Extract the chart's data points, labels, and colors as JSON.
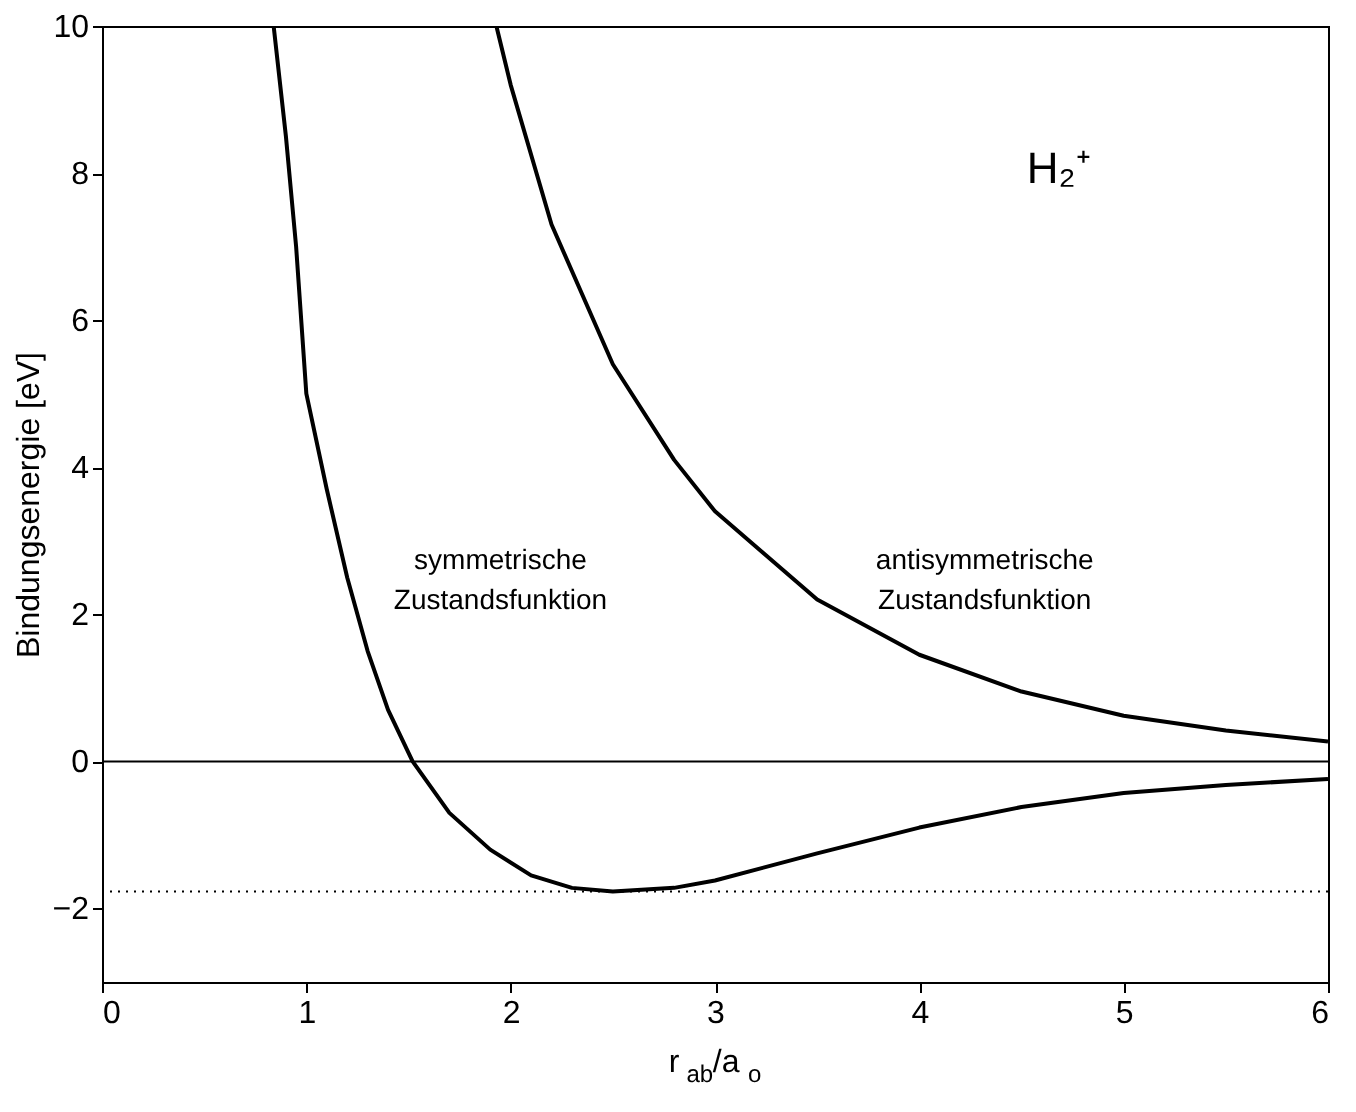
{
  "chart_data": {
    "type": "line",
    "xlabel": "r$_{ab}$/a$_{o}$",
    "ylabel": "Bindungsenergie  [eV]",
    "xlim": [
      0,
      6
    ],
    "ylim": [
      -3,
      10
    ],
    "xticks": [
      0,
      1,
      2,
      3,
      4,
      5,
      6
    ],
    "yticks": [
      -2,
      0,
      2,
      4,
      6,
      8,
      10
    ],
    "grid": false,
    "line_style": "solid",
    "marker": "none",
    "series": [
      {
        "color": "#000000",
        "x": [
          0.84,
          0.9,
          0.95,
          1.0,
          1.1,
          1.2,
          1.3,
          1.4,
          1.52,
          1.7,
          1.9,
          2.1,
          2.3,
          2.5,
          2.8,
          3.0,
          3.5,
          4.0,
          4.5,
          5.0,
          5.5,
          6.0
        ],
        "values": [
          10,
          8.5,
          7.0,
          5.0,
          3.7,
          2.5,
          1.5,
          0.7,
          0,
          -0.7,
          -1.2,
          -1.55,
          -1.72,
          -1.77,
          -1.72,
          -1.62,
          -1.25,
          -0.9,
          -0.62,
          -0.43,
          -0.32,
          -0.24
        ]
      },
      {
        "color": "#000000",
        "x": [
          1.93,
          2.0,
          2.2,
          2.5,
          2.8,
          3.0,
          3.5,
          4.0,
          4.5,
          5.0,
          5.5,
          6.0
        ],
        "values": [
          10,
          9.2,
          7.3,
          5.4,
          4.1,
          3.4,
          2.2,
          1.45,
          0.95,
          0.62,
          0.42,
          0.27
        ]
      }
    ],
    "ref_lines": [
      {
        "axis": "y",
        "value": 0,
        "color": "#000000",
        "line_style": "solid"
      },
      {
        "axis": "y",
        "value": -1.77,
        "color": "#000000",
        "line_style": "dotted"
      }
    ],
    "annotations": [
      "symmetrische\nZustandsfunktion",
      "antisymmetrische\nZustandsfunktion",
      "H₂⁺"
    ]
  }
}
